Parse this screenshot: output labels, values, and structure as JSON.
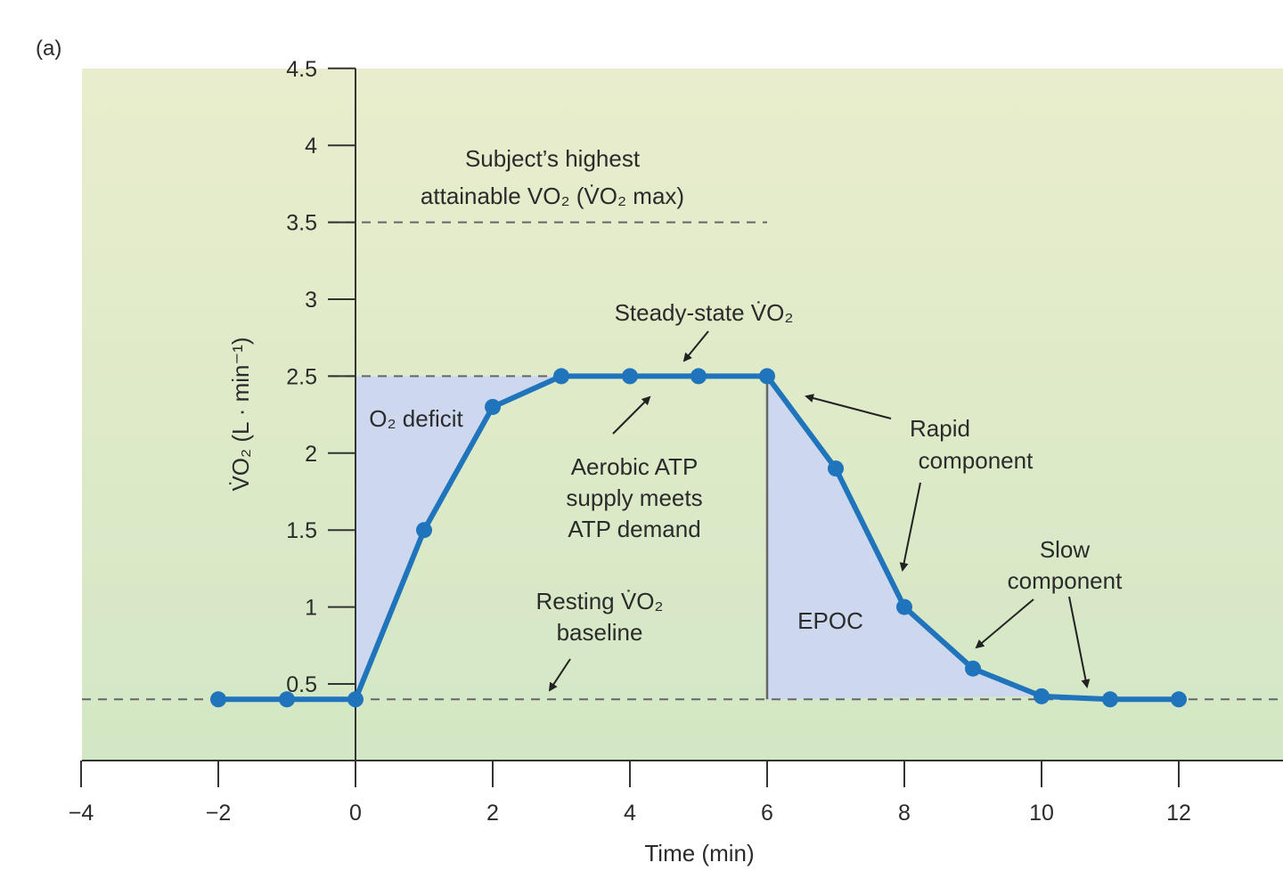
{
  "panel_label": "(a)",
  "chart_data": {
    "type": "line",
    "title": "",
    "xlabel": "Time (min)",
    "ylabel": "V̇O₂ (L · min⁻¹)",
    "xlim": [
      -4,
      13.5
    ],
    "ylim": [
      0,
      4.5
    ],
    "grid": false,
    "x_ticks": [
      -4,
      -2,
      0,
      2,
      4,
      6,
      8,
      10,
      12
    ],
    "x_tick_labels": [
      "−4",
      "−2",
      "0",
      "2",
      "4",
      "6",
      "8",
      "10",
      "12"
    ],
    "y_ticks": [
      0.5,
      1,
      1.5,
      2,
      2.5,
      3,
      3.5,
      4,
      4.5
    ],
    "y_tick_labels": [
      "0.5",
      "1",
      "1.5",
      "2",
      "2.5",
      "3",
      "3.5",
      "4",
      "4.5"
    ],
    "series": [
      {
        "name": "VO2",
        "x": [
          -2,
          -1,
          0,
          1,
          2,
          3,
          4,
          5,
          6,
          7,
          8,
          9,
          10,
          11,
          12
        ],
        "y": [
          0.4,
          0.4,
          0.4,
          1.5,
          2.3,
          2.5,
          2.5,
          2.5,
          2.5,
          1.9,
          1.0,
          0.6,
          0.42,
          0.4,
          0.4
        ],
        "color": "#1f74bb"
      }
    ],
    "reference_lines": {
      "resting_baseline": 0.4,
      "steady_state": 2.5,
      "vo2max": 3.5
    },
    "regions": {
      "o2_deficit": {
        "x_from": 0,
        "x_to": 3,
        "color": "#cdd8ef"
      },
      "epoc": {
        "x_from": 6,
        "x_to": 10,
        "color": "#cdd8ef"
      }
    },
    "annotations": {
      "vo2max_line1": "Subject’s highest",
      "vo2max_line2": "attainable VO₂ (V̇O₂ max)",
      "steady_state": "Steady-state V̇O₂",
      "o2_deficit": "O₂ deficit",
      "aerobic_line1": "Aerobic ATP",
      "aerobic_line2": "supply meets",
      "aerobic_line3": "ATP demand",
      "resting_line1": "Resting V̇O₂",
      "resting_line2": "baseline",
      "epoc": "EPOC",
      "rapid_line1": "Rapid",
      "rapid_line2": "component",
      "slow_line1": "Slow",
      "slow_line2": "component"
    },
    "colors": {
      "background_top": "#e9edcd",
      "background_bottom": "#d3e7c4",
      "axis": "#333333"
    }
  }
}
